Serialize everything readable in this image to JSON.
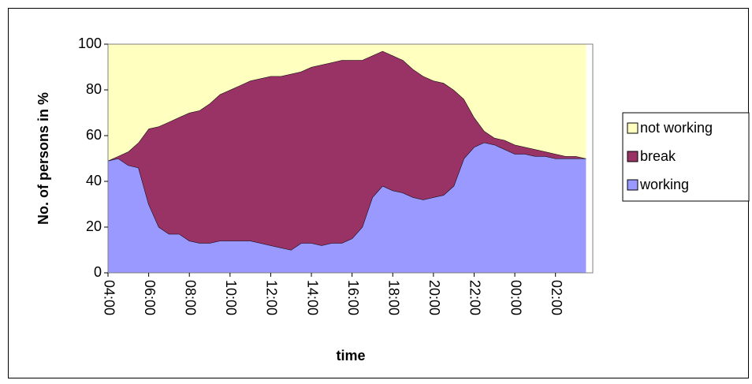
{
  "chart_data": {
    "type": "stacked-area",
    "x_label": "time",
    "y_label": "No. of persons in %",
    "x": [
      "04:00",
      "04:30",
      "05:00",
      "05:30",
      "06:00",
      "06:30",
      "07:00",
      "07:30",
      "08:00",
      "08:30",
      "09:00",
      "09:30",
      "10:00",
      "10:30",
      "11:00",
      "11:30",
      "12:00",
      "12:30",
      "13:00",
      "13:30",
      "14:00",
      "14:30",
      "15:00",
      "15:30",
      "16:00",
      "16:30",
      "17:00",
      "17:30",
      "18:00",
      "18:30",
      "19:00",
      "19:30",
      "20:00",
      "20:30",
      "21:00",
      "21:30",
      "22:00",
      "22:30",
      "23:00",
      "23:30",
      "00:00",
      "00:30",
      "01:00",
      "01:30",
      "02:00",
      "02:30",
      "03:00",
      "03:30"
    ],
    "series": [
      {
        "name": "working",
        "color": "#9999ff",
        "values": [
          49,
          50,
          47,
          46,
          30,
          20,
          17,
          17,
          14,
          13,
          13,
          14,
          14,
          14,
          14,
          13,
          12,
          11,
          10,
          13,
          13,
          12,
          13,
          13,
          15,
          20,
          33,
          38,
          36,
          35,
          33,
          32,
          33,
          34,
          38,
          50,
          55,
          57,
          56,
          54,
          52,
          52,
          51,
          51,
          50,
          50,
          50,
          50
        ]
      },
      {
        "name": "break",
        "color": "#993366",
        "values": [
          0,
          1,
          6,
          11,
          33,
          44,
          49,
          51,
          56,
          58,
          61,
          64,
          66,
          68,
          70,
          72,
          74,
          75,
          77,
          75,
          77,
          79,
          79,
          80,
          78,
          73,
          62,
          59,
          59,
          58,
          56,
          54,
          51,
          49,
          42,
          26,
          13,
          5,
          3,
          4,
          4,
          3,
          3,
          2,
          2,
          1,
          1,
          0
        ]
      },
      {
        "name": "not working",
        "color": "#ffffc0",
        "values": [
          51,
          49,
          47,
          43,
          37,
          36,
          34,
          32,
          30,
          29,
          26,
          22,
          20,
          18,
          16,
          15,
          14,
          14,
          13,
          12,
          10,
          9,
          8,
          7,
          7,
          7,
          5,
          3,
          5,
          7,
          11,
          14,
          16,
          17,
          20,
          24,
          32,
          38,
          41,
          42,
          44,
          45,
          46,
          47,
          48,
          49,
          49,
          50
        ]
      }
    ],
    "xlim": [
      "04:00",
      "03:50"
    ],
    "xticks": [
      "04:00",
      "06:00",
      "08:00",
      "10:00",
      "12:00",
      "14:00",
      "16:00",
      "18:00",
      "20:00",
      "22:00",
      "00:00",
      "02:00"
    ],
    "ylim": [
      0,
      100
    ],
    "yticks": [
      0,
      20,
      40,
      60,
      80,
      100
    ],
    "legend": "right"
  }
}
